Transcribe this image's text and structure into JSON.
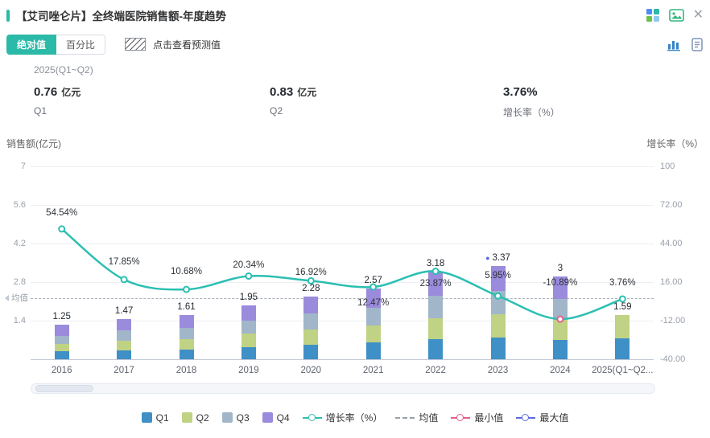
{
  "header": {
    "title": "【艾司唑仑片】全终端医院销售额-年度趋势"
  },
  "toolbar": {
    "tab_absolute": "绝对值",
    "tab_percent": "百分比",
    "forecast_hint": "点击查看预测值"
  },
  "period": {
    "label": "2025(Q1~Q2)"
  },
  "stats": [
    {
      "value": "0.76",
      "unit": "亿元",
      "label": "Q1"
    },
    {
      "value": "0.83",
      "unit": "亿元",
      "label": "Q2"
    },
    {
      "value": "3.76%",
      "unit": "",
      "label": "增长率（%）"
    }
  ],
  "legend": {
    "items": [
      "Q1",
      "Q2",
      "Q3",
      "Q4",
      "增长率（%）",
      "均值",
      "最小值",
      "最大值"
    ]
  },
  "colors": {
    "accent": "#2BB9A8",
    "q1": "#3E90C6",
    "q2": "#C0D283",
    "q3": "#A1B6C8",
    "q4": "#9B8BDC",
    "line": "#2BBFB2",
    "max": "#5B6BE0",
    "min": "#E85C8F"
  },
  "chart_data": {
    "type": "bar",
    "title": "【艾司唑仑片】全终端医院销售额-年度趋势",
    "categories": [
      "2016",
      "2017",
      "2018",
      "2019",
      "2020",
      "2021",
      "2022",
      "2023",
      "2024",
      "2025(Q1~Q2..."
    ],
    "series": [
      {
        "name": "Q1",
        "color_key": "q1",
        "values": [
          0.28,
          0.33,
          0.36,
          0.45,
          0.52,
          0.6,
          0.72,
          0.8,
          0.7,
          0.76
        ]
      },
      {
        "name": "Q2",
        "color_key": "q2",
        "values": [
          0.28,
          0.34,
          0.38,
          0.47,
          0.55,
          0.62,
          0.76,
          0.82,
          0.73,
          0.83
        ]
      },
      {
        "name": "Q3",
        "color_key": "q3",
        "values": [
          0.3,
          0.38,
          0.41,
          0.49,
          0.58,
          0.65,
          0.82,
          0.85,
          0.76,
          0
        ]
      },
      {
        "name": "Q4",
        "color_key": "q4",
        "values": [
          0.39,
          0.42,
          0.46,
          0.54,
          0.63,
          0.7,
          0.88,
          0.9,
          0.81,
          0
        ]
      }
    ],
    "totals": [
      "1.25",
      "1.47",
      "1.61",
      "1.95",
      "2.28",
      "2.57",
      "3.18",
      "3.37",
      "3",
      "1.59"
    ],
    "growth_line": {
      "name": "增长率（%）",
      "values": [
        54.54,
        17.85,
        10.68,
        20.34,
        16.92,
        12.47,
        23.87,
        5.95,
        -10.89,
        3.76
      ],
      "labels": [
        "54.54%",
        "17.85%",
        "10.68%",
        "20.34%",
        "16.92%",
        "12.47%",
        "23.87%",
        "5.95%",
        "-10.89%",
        "3.76%"
      ]
    },
    "mean": {
      "label": "均值",
      "value": 2.23
    },
    "max_marker_index": 7,
    "min_marker_index": 8,
    "left_axis": {
      "title": "销售额(亿元)",
      "ticks": [
        "7",
        "5.6",
        "4.2",
        "2.8",
        "1.4"
      ],
      "tick_values": [
        7,
        5.6,
        4.2,
        2.8,
        1.4
      ],
      "min": 0,
      "max": 7
    },
    "right_axis": {
      "title": "增长率（%）",
      "ticks": [
        "100",
        "72.00",
        "44.00",
        "16.00",
        "-12.00",
        "-40.00"
      ],
      "tick_values": [
        100,
        72,
        44,
        16,
        -12,
        -40
      ],
      "min": -40,
      "max": 100
    },
    "legend_position": "bottom",
    "grid": true
  }
}
